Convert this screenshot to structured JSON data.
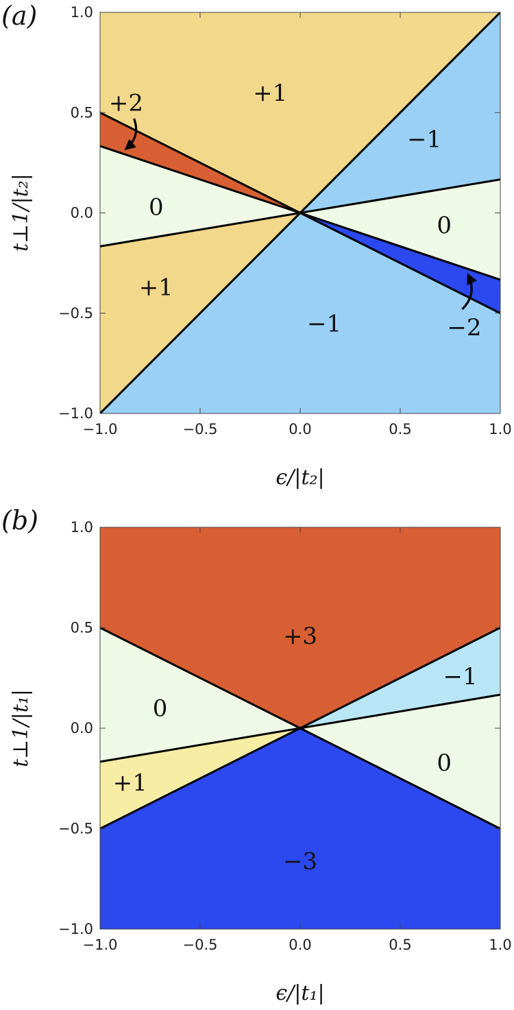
{
  "chart_data": [
    {
      "type": "area",
      "panel_label": "(a)",
      "xlabel": "ϵ/|t₂|",
      "ylabel": "t⊥1/|t₂|",
      "xlim": [
        -1,
        1
      ],
      "ylim": [
        -1,
        1
      ],
      "xticks": [
        "−1.0",
        "−0.5",
        "0.0",
        "0.5",
        "1.0"
      ],
      "yticks": [
        "−1.0",
        "−0.5",
        "0.0",
        "0.5",
        "1.0"
      ],
      "boundary_lines": [
        {
          "slope": 1
        },
        {
          "slope": -0.5
        },
        {
          "slope": -0.3333
        },
        {
          "slope": 0.1667
        }
      ],
      "regions": [
        {
          "label": "+1",
          "value": 1,
          "color": "#f2d88b",
          "polygon": [
            [
              -1,
              1
            ],
            [
              1,
              1
            ],
            [
              0,
              0
            ],
            [
              -1,
              0.5
            ]
          ]
        },
        {
          "label": "+2",
          "value": 2,
          "color": "#d85f34",
          "polygon": [
            [
              -1,
              0.5
            ],
            [
              0,
              0
            ],
            [
              -1,
              0.3333
            ]
          ]
        },
        {
          "label": "0",
          "value": 0,
          "color": "#eefae6",
          "polygon": [
            [
              -1,
              0.3333
            ],
            [
              0,
              0
            ],
            [
              -1,
              -0.1667
            ]
          ]
        },
        {
          "label": "+1",
          "value": 1,
          "color": "#f2d88b",
          "polygon": [
            [
              -1,
              -0.1667
            ],
            [
              0,
              0
            ],
            [
              -1,
              -1
            ]
          ]
        },
        {
          "label": "−1",
          "value": -1,
          "color": "#9ad0f5",
          "polygon": [
            [
              -1,
              -1
            ],
            [
              0,
              0
            ],
            [
              1,
              -0.5
            ],
            [
              1,
              -1
            ]
          ]
        },
        {
          "label": "−2",
          "value": -2,
          "color": "#2b49ee",
          "polygon": [
            [
              0,
              0
            ],
            [
              1,
              -0.3333
            ],
            [
              1,
              -0.5
            ]
          ]
        },
        {
          "label": "0",
          "value": 0,
          "color": "#eefae6",
          "polygon": [
            [
              0,
              0
            ],
            [
              1,
              0.1667
            ],
            [
              1,
              -0.3333
            ]
          ]
        },
        {
          "label": "−1",
          "value": -1,
          "color": "#9ad0f5",
          "polygon": [
            [
              0,
              0
            ],
            [
              1,
              1
            ],
            [
              1,
              0.1667
            ]
          ]
        }
      ],
      "annotations": [
        {
          "text": "+1",
          "x": -0.15,
          "y": 0.6
        },
        {
          "text": "+2",
          "x": -0.87,
          "y": 0.55
        },
        {
          "text": "0",
          "x": -0.72,
          "y": 0.03
        },
        {
          "text": "+1",
          "x": -0.72,
          "y": -0.37
        },
        {
          "text": "−1",
          "x": 0.62,
          "y": 0.37
        },
        {
          "text": "0",
          "x": 0.72,
          "y": -0.06
        },
        {
          "text": "−1",
          "x": 0.12,
          "y": -0.55
        },
        {
          "text": "−2",
          "x": 0.82,
          "y": -0.57
        }
      ],
      "arrows": [
        {
          "from": [
            -0.83,
            0.47
          ],
          "to": [
            -0.87,
            0.32
          ],
          "points_to": "+2"
        },
        {
          "from": [
            0.81,
            -0.48
          ],
          "to": [
            0.84,
            -0.31
          ],
          "points_to": "−2"
        }
      ]
    },
    {
      "type": "area",
      "panel_label": "(b)",
      "xlabel": "ϵ/|t₁|",
      "ylabel": "t⊥1/|t₁|",
      "xlim": [
        -1,
        1
      ],
      "ylim": [
        -1,
        1
      ],
      "xticks": [
        "−1.0",
        "−0.5",
        "0.0",
        "0.5",
        "1.0"
      ],
      "yticks": [
        "−1.0",
        "−0.5",
        "0.0",
        "0.5",
        "1.0"
      ],
      "boundary_lines": [
        {
          "slope": -0.5,
          "x_range": [
            -1,
            0
          ]
        },
        {
          "slope": 0.5,
          "x_range": [
            0,
            1
          ]
        },
        {
          "slope": 0.5,
          "x_range": [
            -1,
            0
          ]
        },
        {
          "slope": -0.5,
          "x_range": [
            0,
            1
          ]
        },
        {
          "slope": 0.1667
        }
      ],
      "regions": [
        {
          "label": "+3",
          "value": 3,
          "color": "#d85f34",
          "polygon": [
            [
              -1,
              1
            ],
            [
              1,
              1
            ],
            [
              1,
              0.5
            ],
            [
              0,
              0
            ],
            [
              -1,
              0.5
            ]
          ]
        },
        {
          "label": "0",
          "value": 0,
          "color": "#eefae6",
          "polygon": [
            [
              -1,
              0.5
            ],
            [
              0,
              0
            ],
            [
              -1,
              -0.1667
            ]
          ]
        },
        {
          "label": "+1",
          "value": 1,
          "color": "#f7eca3",
          "polygon": [
            [
              -1,
              -0.1667
            ],
            [
              0,
              0
            ],
            [
              -1,
              -0.5
            ]
          ]
        },
        {
          "label": "−3",
          "value": -3,
          "color": "#2b49ee",
          "polygon": [
            [
              -1,
              -0.5
            ],
            [
              0,
              0
            ],
            [
              1,
              -0.5
            ],
            [
              1,
              -1
            ],
            [
              -1,
              -1
            ]
          ]
        },
        {
          "label": "0",
          "value": 0,
          "color": "#eefae6",
          "polygon": [
            [
              0,
              0
            ],
            [
              1,
              0.1667
            ],
            [
              1,
              -0.5
            ]
          ]
        },
        {
          "label": "−1",
          "value": -1,
          "color": "#b9e6f6",
          "polygon": [
            [
              0,
              0
            ],
            [
              1,
              0.5
            ],
            [
              1,
              0.1667
            ]
          ]
        }
      ],
      "annotations": [
        {
          "text": "+3",
          "x": 0.0,
          "y": 0.46
        },
        {
          "text": "0",
          "x": -0.7,
          "y": 0.1
        },
        {
          "text": "+1",
          "x": -0.85,
          "y": -0.27
        },
        {
          "text": "−1",
          "x": 0.8,
          "y": 0.26
        },
        {
          "text": "0",
          "x": 0.72,
          "y": -0.17
        },
        {
          "text": "−3",
          "x": 0.0,
          "y": -0.66
        }
      ],
      "arrows": []
    }
  ]
}
